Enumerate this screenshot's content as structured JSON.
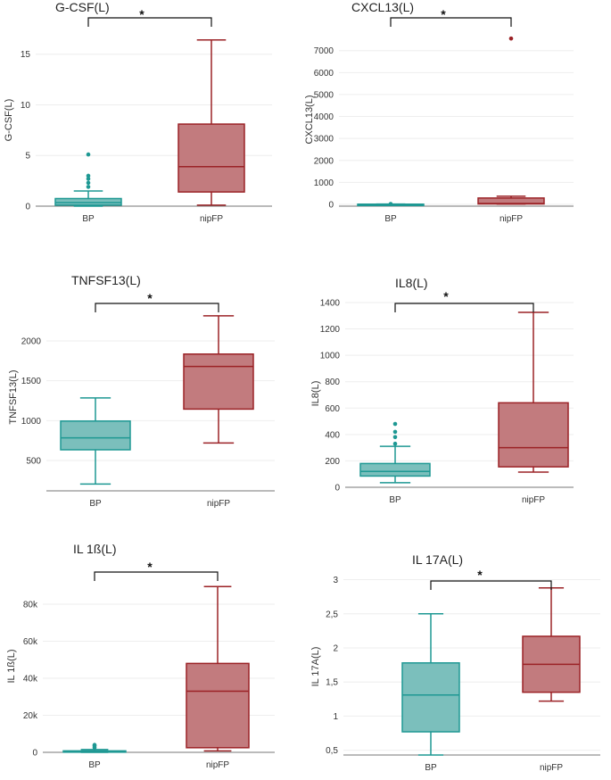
{
  "chart_data": [
    {
      "type": "box",
      "title": "G-CSF(L)",
      "ylabel": "G-CSF(L)",
      "categories": [
        "BP",
        "nipFP"
      ],
      "significance": "*",
      "ylim": [
        0,
        17
      ],
      "yticks": [
        0,
        5,
        10,
        15
      ],
      "ytick_labels": [
        "0",
        "5",
        "10",
        "15"
      ],
      "boxes": [
        {
          "name": "BP",
          "whisker_low": 0,
          "q1": 0.1,
          "median": 0.35,
          "q3": 0.75,
          "whisker_high": 1.5,
          "outliers": [
            1.9,
            2.3,
            2.7,
            3.0,
            5.1
          ]
        },
        {
          "name": "nipFP",
          "whisker_low": 0.1,
          "q1": 1.4,
          "median": 3.9,
          "q3": 8.1,
          "whisker_high": 16.4,
          "outliers": []
        }
      ]
    },
    {
      "type": "box",
      "title": "CXCL13(L)",
      "ylabel": "CXCL13(L)",
      "categories": [
        "BP",
        "nipFP"
      ],
      "significance": "*",
      "ylim": [
        -80,
        7800
      ],
      "yticks": [
        0,
        1000,
        2000,
        3000,
        4000,
        5000,
        6000,
        7000
      ],
      "ytick_labels": [
        "0",
        "1000",
        "2000",
        "3000",
        "4000",
        "5000",
        "6000",
        "7000"
      ],
      "boxes": [
        {
          "name": "BP",
          "whisker_low": 0,
          "q1": 2,
          "median": 5,
          "q3": 10,
          "whisker_high": 15,
          "outliers": [
            20
          ]
        },
        {
          "name": "nipFP",
          "whisker_low": 10,
          "q1": 20,
          "median": 40,
          "q3": 290,
          "whisker_high": 370,
          "outliers": [
            7550
          ]
        }
      ]
    },
    {
      "type": "box",
      "title": "TNFSF13(L)",
      "ylabel": "TNFSF13(L)",
      "categories": [
        "BP",
        "nipFP"
      ],
      "significance": "*",
      "ylim": [
        120,
        2470
      ],
      "yticks": [
        500,
        1000,
        1500,
        2000
      ],
      "ytick_labels": [
        "500",
        "1000",
        "1500",
        "2000"
      ],
      "boxes": [
        {
          "name": "BP",
          "whisker_low": 205,
          "q1": 635,
          "median": 785,
          "q3": 995,
          "whisker_high": 1285,
          "outliers": []
        },
        {
          "name": "nipFP",
          "whisker_low": 720,
          "q1": 1145,
          "median": 1680,
          "q3": 1835,
          "whisker_high": 2315,
          "outliers": []
        }
      ]
    },
    {
      "type": "box",
      "title": "IL8(L)",
      "ylabel": "IL8(L)",
      "categories": [
        "BP",
        "nipFP"
      ],
      "significance": "*",
      "ylim": [
        0,
        1420
      ],
      "yticks": [
        0,
        200,
        400,
        600,
        800,
        1000,
        1200,
        1400
      ],
      "ytick_labels": [
        "0",
        "200",
        "400",
        "600",
        "800",
        "1000",
        "1200",
        "1400"
      ],
      "boxes": [
        {
          "name": "BP",
          "whisker_low": 35,
          "q1": 85,
          "median": 120,
          "q3": 180,
          "whisker_high": 310,
          "outliers": [
            330,
            380,
            420,
            480
          ]
        },
        {
          "name": "nipFP",
          "whisker_low": 115,
          "q1": 155,
          "median": 300,
          "q3": 640,
          "whisker_high": 1325,
          "outliers": []
        }
      ]
    },
    {
      "type": "box",
      "title": "IL 1ß(L)",
      "ylabel": "IL 1ß(L)",
      "categories": [
        "BP",
        "nipFP"
      ],
      "significance": "*",
      "ylim": [
        0,
        93000
      ],
      "yticks": [
        0,
        20000,
        40000,
        60000,
        80000
      ],
      "ytick_labels": [
        "0",
        "20k",
        "40k",
        "60k",
        "80k"
      ],
      "boxes": [
        {
          "name": "BP",
          "whisker_low": 0,
          "q1": 100,
          "median": 300,
          "q3": 800,
          "whisker_high": 1500,
          "outliers": [
            2500,
            3500,
            4000
          ]
        },
        {
          "name": "nipFP",
          "whisker_low": 800,
          "q1": 2500,
          "median": 33000,
          "q3": 48000,
          "whisker_high": 89500,
          "outliers": []
        }
      ]
    },
    {
      "type": "box",
      "title": "IL 17A(L)",
      "ylabel": "IL 17A(L)",
      "categories": [
        "BP",
        "nipFP"
      ],
      "significance": "*",
      "ylim": [
        0.43,
        3.02
      ],
      "yticks": [
        0.5,
        1,
        1.5,
        2,
        2.5,
        3
      ],
      "ytick_labels": [
        "0,5",
        "1",
        "1,5",
        "2",
        "2,5",
        "3"
      ],
      "boxes": [
        {
          "name": "BP",
          "whisker_low": 0.43,
          "q1": 0.77,
          "median": 1.31,
          "q3": 1.78,
          "whisker_high": 2.5,
          "outliers": []
        },
        {
          "name": "nipFP",
          "whisker_low": 1.22,
          "q1": 1.35,
          "median": 1.76,
          "q3": 2.17,
          "whisker_high": 2.88,
          "outliers": []
        }
      ]
    }
  ],
  "colors": {
    "bp_fill": "#7bbfbc",
    "bp_stroke": "#1e9893",
    "nipfp_fill": "#c27b7e",
    "nipfp_stroke": "#9b2226",
    "grid": "#eeeeee",
    "axis": "#777777"
  }
}
